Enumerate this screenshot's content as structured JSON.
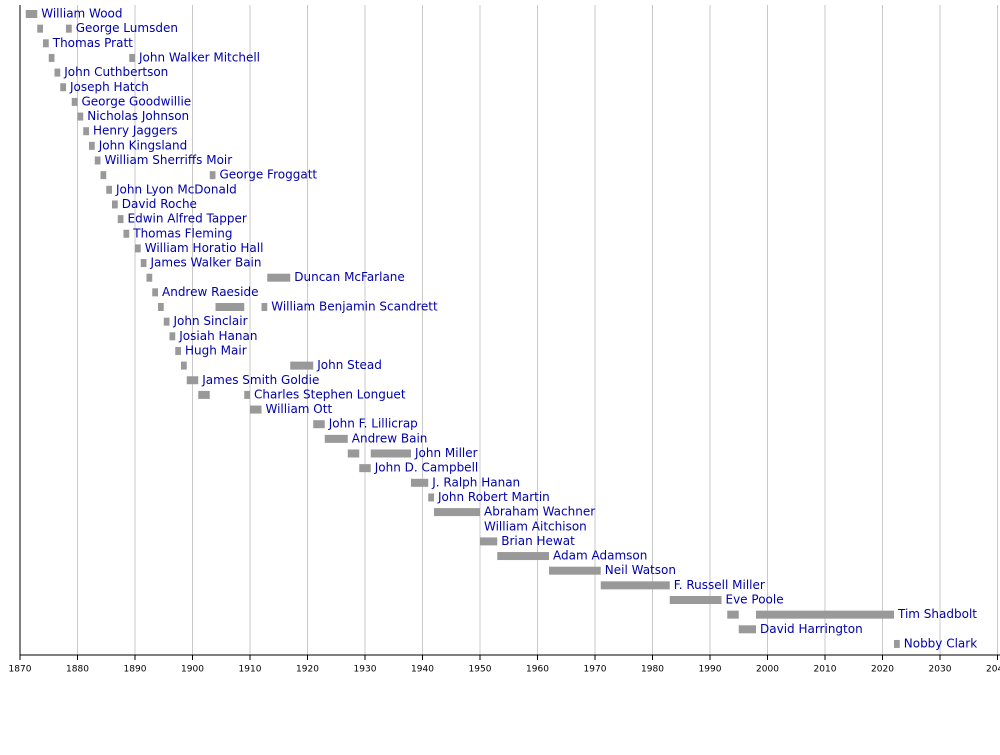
{
  "chart_data": {
    "type": "timeline",
    "bar_color": "#999999",
    "label_color": "#0000aa",
    "grid": true,
    "xlim": [
      1870,
      2040
    ],
    "xticks": [
      1870,
      1880,
      1890,
      1900,
      1910,
      1920,
      1930,
      1940,
      1950,
      1960,
      1970,
      1980,
      1990,
      2000,
      2010,
      2020,
      2030,
      2040
    ],
    "rows": [
      {
        "name": "William Wood",
        "terms": [
          [
            1871,
            1873
          ]
        ]
      },
      {
        "name": "George Lumsden",
        "terms": [
          [
            1873,
            1874
          ],
          [
            1878,
            1879
          ]
        ]
      },
      {
        "name": "Thomas Pratt",
        "terms": [
          [
            1874,
            1875
          ]
        ]
      },
      {
        "name": "John Walker Mitchell",
        "terms": [
          [
            1875,
            1876
          ],
          [
            1889,
            1890
          ]
        ]
      },
      {
        "name": "John Cuthbertson",
        "terms": [
          [
            1876,
            1877
          ]
        ]
      },
      {
        "name": "Joseph Hatch",
        "terms": [
          [
            1877,
            1878
          ]
        ]
      },
      {
        "name": "George Goodwillie",
        "terms": [
          [
            1879,
            1880
          ]
        ]
      },
      {
        "name": "Nicholas Johnson",
        "terms": [
          [
            1880,
            1881
          ]
        ]
      },
      {
        "name": "Henry Jaggers",
        "terms": [
          [
            1881,
            1882
          ]
        ]
      },
      {
        "name": "John Kingsland",
        "terms": [
          [
            1882,
            1883
          ]
        ]
      },
      {
        "name": "William Sherriffs Moir",
        "terms": [
          [
            1883,
            1884
          ]
        ]
      },
      {
        "name": "George Froggatt",
        "terms": [
          [
            1884,
            1885
          ],
          [
            1903,
            1904
          ]
        ]
      },
      {
        "name": "John Lyon McDonald",
        "terms": [
          [
            1885,
            1886
          ]
        ]
      },
      {
        "name": "David Roche",
        "terms": [
          [
            1886,
            1887
          ]
        ]
      },
      {
        "name": "Edwin Alfred Tapper",
        "terms": [
          [
            1887,
            1888
          ]
        ]
      },
      {
        "name": "Thomas Fleming",
        "terms": [
          [
            1888,
            1889
          ]
        ]
      },
      {
        "name": "William Horatio Hall",
        "terms": [
          [
            1890,
            1891
          ]
        ]
      },
      {
        "name": "James Walker Bain",
        "terms": [
          [
            1891,
            1892
          ]
        ]
      },
      {
        "name": "Duncan McFarlane",
        "terms": [
          [
            1892,
            1893
          ],
          [
            1913,
            1917
          ]
        ]
      },
      {
        "name": "Andrew Raeside",
        "terms": [
          [
            1893,
            1894
          ]
        ]
      },
      {
        "name": "William Benjamin Scandrett",
        "terms": [
          [
            1894,
            1895
          ],
          [
            1904,
            1909
          ],
          [
            1912,
            1913
          ]
        ]
      },
      {
        "name": "John Sinclair",
        "terms": [
          [
            1895,
            1896
          ]
        ]
      },
      {
        "name": "Josiah Hanan",
        "terms": [
          [
            1896,
            1897
          ]
        ]
      },
      {
        "name": "Hugh Mair",
        "terms": [
          [
            1897,
            1898
          ]
        ]
      },
      {
        "name": "John Stead",
        "terms": [
          [
            1898,
            1899
          ],
          [
            1917,
            1921
          ]
        ]
      },
      {
        "name": "James Smith Goldie",
        "terms": [
          [
            1899,
            1901
          ]
        ]
      },
      {
        "name": "Charles Stephen Longuet",
        "terms": [
          [
            1901,
            1903
          ],
          [
            1909,
            1910
          ]
        ]
      },
      {
        "name": "William Ott",
        "terms": [
          [
            1910,
            1912
          ]
        ]
      },
      {
        "name": "John F. Lillicrap",
        "terms": [
          [
            1921,
            1923
          ]
        ]
      },
      {
        "name": "Andrew Bain",
        "terms": [
          [
            1923,
            1927
          ]
        ]
      },
      {
        "name": "John Miller",
        "terms": [
          [
            1927,
            1929
          ],
          [
            1931,
            1938
          ]
        ]
      },
      {
        "name": "John D. Campbell",
        "terms": [
          [
            1929,
            1931
          ]
        ]
      },
      {
        "name": "J. Ralph Hanan",
        "terms": [
          [
            1938,
            1941
          ]
        ]
      },
      {
        "name": "John Robert Martin",
        "terms": [
          [
            1941,
            1942
          ]
        ]
      },
      {
        "name": "Abraham Wachner",
        "terms": [
          [
            1942,
            1950
          ]
        ]
      },
      {
        "name": "William Aitchison",
        "terms": [
          [
            1950,
            1950
          ]
        ]
      },
      {
        "name": "Brian Hewat",
        "terms": [
          [
            1950,
            1953
          ]
        ]
      },
      {
        "name": "Adam Adamson",
        "terms": [
          [
            1953,
            1962
          ]
        ]
      },
      {
        "name": "Neil Watson",
        "terms": [
          [
            1962,
            1971
          ]
        ]
      },
      {
        "name": "F. Russell Miller",
        "terms": [
          [
            1971,
            1983
          ]
        ]
      },
      {
        "name": "Eve Poole",
        "terms": [
          [
            1983,
            1992
          ]
        ]
      },
      {
        "name": "Tim Shadbolt",
        "terms": [
          [
            1993,
            1995
          ],
          [
            1998,
            2022
          ]
        ]
      },
      {
        "name": "David Harrington",
        "terms": [
          [
            1995,
            1998
          ]
        ]
      },
      {
        "name": "Nobby Clark",
        "terms": [
          [
            2022,
            2023
          ]
        ]
      }
    ]
  }
}
